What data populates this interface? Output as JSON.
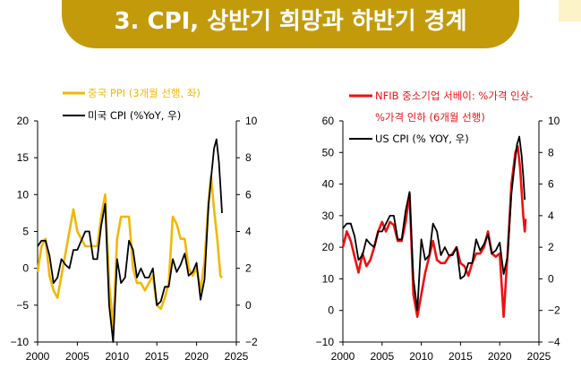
{
  "header": {
    "title": "3. CPI, 상반기 희망과 하반기 경계",
    "banner_color": "#c39b0a"
  },
  "chart_data": [
    {
      "type": "line",
      "x_range": [
        2000,
        2025
      ],
      "x_ticks": [
        "2000",
        "2005",
        "2010",
        "2015",
        "2020",
        "2025"
      ],
      "left_axis": {
        "range": [
          -10,
          20
        ],
        "ticks": [
          "-10",
          "-5",
          "0",
          "5",
          "10",
          "15",
          "20"
        ]
      },
      "right_axis": {
        "range": [
          -2,
          10
        ],
        "ticks": [
          "-2",
          "0",
          "2",
          "4",
          "6",
          "8",
          "10"
        ]
      },
      "legend_position": "top-left",
      "series": [
        {
          "name": "중국 PPI (3개월 선행, 좌)",
          "axis": "left",
          "color": "#f2b705",
          "points": [
            [
              2000.0,
              -0.5
            ],
            [
              2000.5,
              3
            ],
            [
              2001.0,
              4
            ],
            [
              2001.5,
              -1
            ],
            [
              2002.0,
              -3
            ],
            [
              2002.5,
              -4
            ],
            [
              2003.0,
              -1
            ],
            [
              2003.5,
              2
            ],
            [
              2004.0,
              5
            ],
            [
              2004.5,
              8
            ],
            [
              2005.0,
              5
            ],
            [
              2005.5,
              4
            ],
            [
              2006.0,
              3
            ],
            [
              2006.5,
              3
            ],
            [
              2007.0,
              3
            ],
            [
              2007.5,
              3
            ],
            [
              2008.0,
              7
            ],
            [
              2008.5,
              10
            ],
            [
              2009.0,
              -2
            ],
            [
              2009.5,
              -8
            ],
            [
              2010.0,
              4
            ],
            [
              2010.5,
              7
            ],
            [
              2011.0,
              7
            ],
            [
              2011.5,
              7
            ],
            [
              2012.0,
              0
            ],
            [
              2012.5,
              -2
            ],
            [
              2013.0,
              -2
            ],
            [
              2013.5,
              -3
            ],
            [
              2014.0,
              -2
            ],
            [
              2014.5,
              -1
            ],
            [
              2015.0,
              -5
            ],
            [
              2015.5,
              -5.5
            ],
            [
              2016.0,
              -4
            ],
            [
              2016.5,
              -2
            ],
            [
              2017.0,
              7
            ],
            [
              2017.5,
              6
            ],
            [
              2018.0,
              4
            ],
            [
              2018.5,
              4
            ],
            [
              2019.0,
              0
            ],
            [
              2019.5,
              -1
            ],
            [
              2020.0,
              0
            ],
            [
              2020.5,
              -3
            ],
            [
              2021.0,
              1
            ],
            [
              2021.5,
              9
            ],
            [
              2021.8,
              12.5
            ],
            [
              2022.2,
              8
            ],
            [
              2022.6,
              4
            ],
            [
              2023.0,
              -1
            ],
            [
              2023.2,
              -1.3
            ]
          ]
        },
        {
          "name": "미국 CPI (%YoY, 우)",
          "axis": "right",
          "color": "#000000",
          "points": [
            [
              2000.0,
              3.2
            ],
            [
              2000.5,
              3.5
            ],
            [
              2001.0,
              3.5
            ],
            [
              2001.5,
              2.7
            ],
            [
              2002.0,
              1.2
            ],
            [
              2002.5,
              1.5
            ],
            [
              2003.0,
              2.5
            ],
            [
              2003.5,
              2.2
            ],
            [
              2004.0,
              2
            ],
            [
              2004.5,
              3
            ],
            [
              2005.0,
              3
            ],
            [
              2005.5,
              3.5
            ],
            [
              2006.0,
              4
            ],
            [
              2006.5,
              4
            ],
            [
              2007.0,
              2.5
            ],
            [
              2007.5,
              2.5
            ],
            [
              2008.0,
              4.3
            ],
            [
              2008.5,
              5.5
            ],
            [
              2009.0,
              0
            ],
            [
              2009.5,
              -2
            ],
            [
              2010.0,
              2.5
            ],
            [
              2010.5,
              1.2
            ],
            [
              2011.0,
              1.5
            ],
            [
              2011.5,
              3.5
            ],
            [
              2012.0,
              3
            ],
            [
              2012.5,
              1.5
            ],
            [
              2013.0,
              2
            ],
            [
              2013.5,
              1.5
            ],
            [
              2014.0,
              1.5
            ],
            [
              2014.5,
              2
            ],
            [
              2015.0,
              0
            ],
            [
              2015.5,
              0.2
            ],
            [
              2016.0,
              1
            ],
            [
              2016.5,
              1
            ],
            [
              2017.0,
              2.5
            ],
            [
              2017.5,
              1.8
            ],
            [
              2018.0,
              2.2
            ],
            [
              2018.5,
              2.8
            ],
            [
              2019.0,
              1.6
            ],
            [
              2019.5,
              1.8
            ],
            [
              2020.0,
              2.3
            ],
            [
              2020.5,
              0.3
            ],
            [
              2021.0,
              1.4
            ],
            [
              2021.5,
              5.4
            ],
            [
              2021.8,
              6.8
            ],
            [
              2022.2,
              8.5
            ],
            [
              2022.5,
              9
            ],
            [
              2022.8,
              7.8
            ],
            [
              2023.0,
              6.5
            ],
            [
              2023.2,
              5
            ]
          ]
        }
      ]
    },
    {
      "type": "line",
      "x_range": [
        2000,
        2025
      ],
      "x_ticks": [
        "2000",
        "2005",
        "2010",
        "2015",
        "2020",
        "2025"
      ],
      "left_axis": {
        "range": [
          -10,
          60
        ],
        "ticks": [
          "-10",
          "0",
          "10",
          "20",
          "30",
          "40",
          "50",
          "60"
        ]
      },
      "right_axis": {
        "range": [
          -4,
          10
        ],
        "ticks": [
          "-4",
          "-2",
          "0",
          "2",
          "4",
          "6",
          "8",
          "10"
        ]
      },
      "legend_position": "top-left",
      "series": [
        {
          "name": "NFIB 중소기업 서베이: %가격 인상-%가격 인하 (6개월 선행)",
          "axis": "left",
          "color": "#ee1111",
          "points": [
            [
              2000.0,
              20
            ],
            [
              2000.5,
              25
            ],
            [
              2001.0,
              22
            ],
            [
              2001.5,
              17
            ],
            [
              2002.0,
              12
            ],
            [
              2002.5,
              18
            ],
            [
              2003.0,
              14
            ],
            [
              2003.5,
              16
            ],
            [
              2004.0,
              20
            ],
            [
              2004.5,
              25
            ],
            [
              2005.0,
              28
            ],
            [
              2005.5,
              25
            ],
            [
              2006.0,
              28
            ],
            [
              2006.5,
              27
            ],
            [
              2007.0,
              22
            ],
            [
              2007.5,
              22
            ],
            [
              2008.0,
              28
            ],
            [
              2008.5,
              37
            ],
            [
              2009.0,
              5
            ],
            [
              2009.5,
              -2
            ],
            [
              2010.0,
              5
            ],
            [
              2010.5,
              12
            ],
            [
              2011.0,
              17
            ],
            [
              2011.5,
              22
            ],
            [
              2012.0,
              16
            ],
            [
              2012.5,
              15
            ],
            [
              2013.0,
              15
            ],
            [
              2013.5,
              17
            ],
            [
              2014.0,
              18
            ],
            [
              2014.5,
              20
            ],
            [
              2015.0,
              15
            ],
            [
              2015.5,
              14
            ],
            [
              2016.0,
              11
            ],
            [
              2016.5,
              15
            ],
            [
              2017.0,
              18
            ],
            [
              2017.5,
              18
            ],
            [
              2018.0,
              20
            ],
            [
              2018.5,
              25
            ],
            [
              2019.0,
              18
            ],
            [
              2019.5,
              17
            ],
            [
              2020.0,
              18
            ],
            [
              2020.5,
              -2
            ],
            [
              2020.8,
              10
            ],
            [
              2021.0,
              18
            ],
            [
              2021.5,
              40
            ],
            [
              2022.0,
              50
            ],
            [
              2022.3,
              52
            ],
            [
              2022.6,
              45
            ],
            [
              2023.0,
              30
            ],
            [
              2023.2,
              25
            ],
            [
              2023.3,
              29
            ]
          ]
        },
        {
          "name": "US CPI (% YOY, 우)",
          "axis": "right",
          "color": "#000000",
          "points": [
            [
              2000.0,
              3.2
            ],
            [
              2000.5,
              3.5
            ],
            [
              2001.0,
              3.5
            ],
            [
              2001.5,
              2.7
            ],
            [
              2002.0,
              1.2
            ],
            [
              2002.5,
              1.5
            ],
            [
              2003.0,
              2.5
            ],
            [
              2003.5,
              2.2
            ],
            [
              2004.0,
              2
            ],
            [
              2004.5,
              3
            ],
            [
              2005.0,
              3
            ],
            [
              2005.5,
              3.5
            ],
            [
              2006.0,
              4
            ],
            [
              2006.5,
              4
            ],
            [
              2007.0,
              2.5
            ],
            [
              2007.5,
              2.5
            ],
            [
              2008.0,
              4.3
            ],
            [
              2008.5,
              5.5
            ],
            [
              2009.0,
              0
            ],
            [
              2009.5,
              -2
            ],
            [
              2010.0,
              2.5
            ],
            [
              2010.5,
              1.2
            ],
            [
              2011.0,
              1.5
            ],
            [
              2011.5,
              3.5
            ],
            [
              2012.0,
              3
            ],
            [
              2012.5,
              1.5
            ],
            [
              2013.0,
              2
            ],
            [
              2013.5,
              1.5
            ],
            [
              2014.0,
              1.5
            ],
            [
              2014.5,
              2
            ],
            [
              2015.0,
              0
            ],
            [
              2015.5,
              0.2
            ],
            [
              2016.0,
              1
            ],
            [
              2016.5,
              1
            ],
            [
              2017.0,
              2.5
            ],
            [
              2017.5,
              1.8
            ],
            [
              2018.0,
              2.2
            ],
            [
              2018.5,
              2.8
            ],
            [
              2019.0,
              1.6
            ],
            [
              2019.5,
              1.8
            ],
            [
              2020.0,
              2.3
            ],
            [
              2020.5,
              0.3
            ],
            [
              2021.0,
              1.4
            ],
            [
              2021.5,
              5.4
            ],
            [
              2021.8,
              6.8
            ],
            [
              2022.2,
              8.5
            ],
            [
              2022.5,
              9
            ],
            [
              2022.8,
              7.8
            ],
            [
              2023.0,
              6.5
            ],
            [
              2023.2,
              5
            ]
          ]
        }
      ]
    }
  ]
}
